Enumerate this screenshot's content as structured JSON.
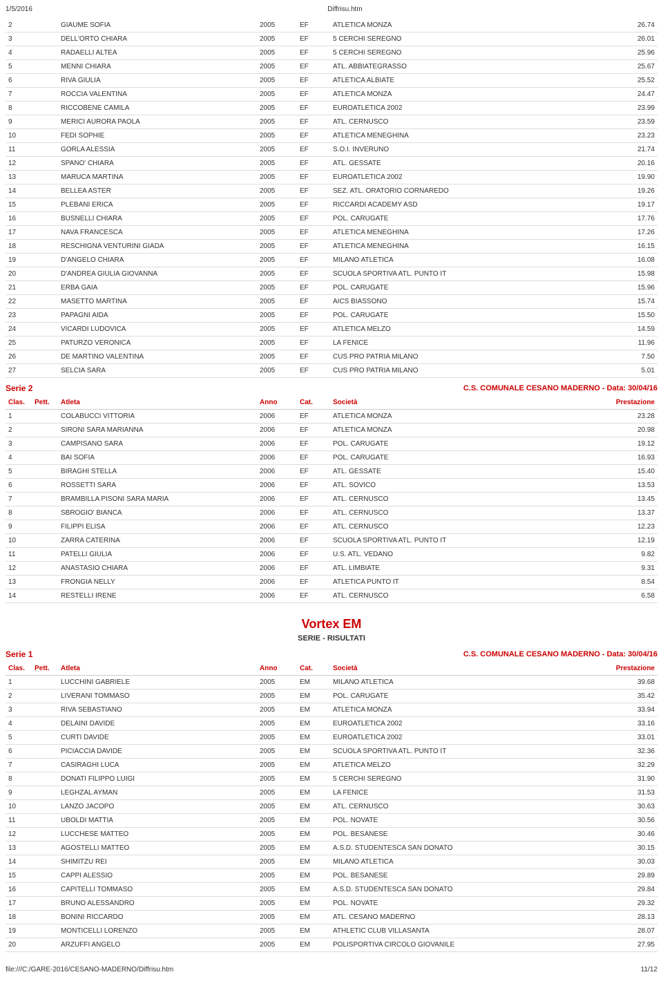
{
  "page_header": {
    "left": "1/5/2016",
    "center": "Diffrisu.htm"
  },
  "page_footer": {
    "left": "file:///C:/GARE-2016/CESANO-MADERNO/Diffrisu.htm",
    "right": "11/12"
  },
  "columns": {
    "clas": "Clas.",
    "pett": "Pett.",
    "atleta": "Atleta",
    "anno": "Anno",
    "cat": "Cat.",
    "soc": "Società",
    "prest": "Prestazione"
  },
  "event_title": "Vortex EM",
  "event_sub": "SERIE - RISULTATI",
  "series": [
    {
      "label": "",
      "meta": "",
      "show_header": false,
      "rows": [
        {
          "c": "2",
          "a": "GIAUME SOFIA",
          "y": "2005",
          "cat": "EF",
          "s": "ATLETICA MONZA",
          "p": "26.74"
        },
        {
          "c": "3",
          "a": "DELL'ORTO CHIARA",
          "y": "2005",
          "cat": "EF",
          "s": "5 CERCHI SEREGNO",
          "p": "26.01"
        },
        {
          "c": "4",
          "a": "RADAELLI ALTEA",
          "y": "2005",
          "cat": "EF",
          "s": "5 CERCHI SEREGNO",
          "p": "25.96"
        },
        {
          "c": "5",
          "a": "MENNI CHIARA",
          "y": "2005",
          "cat": "EF",
          "s": "ATL. ABBIATEGRASSO",
          "p": "25.67"
        },
        {
          "c": "6",
          "a": "RIVA GIULIA",
          "y": "2005",
          "cat": "EF",
          "s": "ATLETICA ALBIATE",
          "p": "25.52"
        },
        {
          "c": "7",
          "a": "ROCCIA VALENTINA",
          "y": "2005",
          "cat": "EF",
          "s": "ATLETICA MONZA",
          "p": "24.47"
        },
        {
          "c": "8",
          "a": "RICCOBENE CAMILA",
          "y": "2005",
          "cat": "EF",
          "s": "EUROATLETICA 2002",
          "p": "23.99"
        },
        {
          "c": "9",
          "a": "MERICI AURORA PAOLA",
          "y": "2005",
          "cat": "EF",
          "s": "ATL. CERNUSCO",
          "p": "23.59"
        },
        {
          "c": "10",
          "a": "FEDI SOPHIE",
          "y": "2005",
          "cat": "EF",
          "s": "ATLETICA MENEGHINA",
          "p": "23.23"
        },
        {
          "c": "11",
          "a": "GORLA ALESSIA",
          "y": "2005",
          "cat": "EF",
          "s": "S.O.I. INVERUNO",
          "p": "21.74"
        },
        {
          "c": "12",
          "a": "SPANO' CHIARA",
          "y": "2005",
          "cat": "EF",
          "s": "ATL. GESSATE",
          "p": "20.16"
        },
        {
          "c": "13",
          "a": "MARUCA MARTINA",
          "y": "2005",
          "cat": "EF",
          "s": "EUROATLETICA 2002",
          "p": "19.90"
        },
        {
          "c": "14",
          "a": "BELLEA ASTER",
          "y": "2005",
          "cat": "EF",
          "s": "SEZ. ATL. ORATORIO CORNAREDO",
          "p": "19.26"
        },
        {
          "c": "15",
          "a": "PLEBANI ERICA",
          "y": "2005",
          "cat": "EF",
          "s": "RICCARDI ACADEMY ASD",
          "p": "19.17"
        },
        {
          "c": "16",
          "a": "BUSNELLI CHIARA",
          "y": "2005",
          "cat": "EF",
          "s": "POL. CARUGATE",
          "p": "17.76"
        },
        {
          "c": "17",
          "a": "NAVA FRANCESCA",
          "y": "2005",
          "cat": "EF",
          "s": "ATLETICA MENEGHINA",
          "p": "17.26"
        },
        {
          "c": "18",
          "a": "RESCHIGNA VENTURINI GIADA",
          "y": "2005",
          "cat": "EF",
          "s": "ATLETICA MENEGHINA",
          "p": "16.15"
        },
        {
          "c": "19",
          "a": "D'ANGELO CHIARA",
          "y": "2005",
          "cat": "EF",
          "s": "MILANO ATLETICA",
          "p": "16.08"
        },
        {
          "c": "20",
          "a": "D'ANDREA GIULIA GIOVANNA",
          "y": "2005",
          "cat": "EF",
          "s": "SCUOLA SPORTIVA ATL. PUNTO IT",
          "p": "15.98"
        },
        {
          "c": "21",
          "a": "ERBA GAIA",
          "y": "2005",
          "cat": "EF",
          "s": "POL. CARUGATE",
          "p": "15.96"
        },
        {
          "c": "22",
          "a": "MASETTO MARTINA",
          "y": "2005",
          "cat": "EF",
          "s": "AICS BIASSONO",
          "p": "15.74"
        },
        {
          "c": "23",
          "a": "PAPAGNI AIDA",
          "y": "2005",
          "cat": "EF",
          "s": "POL. CARUGATE",
          "p": "15.50"
        },
        {
          "c": "24",
          "a": "VICARDI LUDOVICA",
          "y": "2005",
          "cat": "EF",
          "s": "ATLETICA MELZO",
          "p": "14.59"
        },
        {
          "c": "25",
          "a": "PATURZO VERONICA",
          "y": "2005",
          "cat": "EF",
          "s": "LA FENICE",
          "p": "11.96"
        },
        {
          "c": "26",
          "a": "DE MARTINO VALENTINA",
          "y": "2005",
          "cat": "EF",
          "s": "CUS PRO PATRIA MILANO",
          "p": "7.50"
        },
        {
          "c": "27",
          "a": "SELCIA SARA",
          "y": "2005",
          "cat": "EF",
          "s": "CUS PRO PATRIA MILANO",
          "p": "5.01"
        }
      ]
    },
    {
      "label": "Serie 2",
      "meta": "C.S. COMUNALE CESANO MADERNO - Data: 30/04/16",
      "show_header": true,
      "rows": [
        {
          "c": "1",
          "a": "COLABUCCI VITTORIA",
          "y": "2006",
          "cat": "EF",
          "s": "ATLETICA MONZA",
          "p": "23.28"
        },
        {
          "c": "2",
          "a": "SIRONI SARA MARIANNA",
          "y": "2006",
          "cat": "EF",
          "s": "ATLETICA MONZA",
          "p": "20.98"
        },
        {
          "c": "3",
          "a": "CAMPISANO SARA",
          "y": "2006",
          "cat": "EF",
          "s": "POL. CARUGATE",
          "p": "19.12"
        },
        {
          "c": "4",
          "a": "BAI SOFIA",
          "y": "2006",
          "cat": "EF",
          "s": "POL. CARUGATE",
          "p": "16.93"
        },
        {
          "c": "5",
          "a": "BIRAGHI STELLA",
          "y": "2006",
          "cat": "EF",
          "s": "ATL. GESSATE",
          "p": "15.40"
        },
        {
          "c": "6",
          "a": "ROSSETTI SARA",
          "y": "2006",
          "cat": "EF",
          "s": "ATL. SOVICO",
          "p": "13.53"
        },
        {
          "c": "7",
          "a": "BRAMBILLA PISONI SARA MARIA",
          "y": "2006",
          "cat": "EF",
          "s": "ATL. CERNUSCO",
          "p": "13.45"
        },
        {
          "c": "8",
          "a": "SBROGIO' BIANCA",
          "y": "2006",
          "cat": "EF",
          "s": "ATL. CERNUSCO",
          "p": "13.37"
        },
        {
          "c": "9",
          "a": "FILIPPI ELISA",
          "y": "2006",
          "cat": "EF",
          "s": "ATL. CERNUSCO",
          "p": "12.23"
        },
        {
          "c": "10",
          "a": "ZARRA CATERINA",
          "y": "2006",
          "cat": "EF",
          "s": "SCUOLA SPORTIVA ATL. PUNTO IT",
          "p": "12.19"
        },
        {
          "c": "11",
          "a": "PATELLI GIULIA",
          "y": "2006",
          "cat": "EF",
          "s": "U.S. ATL. VEDANO",
          "p": "9.82"
        },
        {
          "c": "12",
          "a": "ANASTASIO CHIARA",
          "y": "2006",
          "cat": "EF",
          "s": "ATL. LIMBIATE",
          "p": "9.31"
        },
        {
          "c": "13",
          "a": "FRONGIA NELLY",
          "y": "2006",
          "cat": "EF",
          "s": "ATLETICA PUNTO IT",
          "p": "8.54"
        },
        {
          "c": "14",
          "a": "RESTELLI IRENE",
          "y": "2006",
          "cat": "EF",
          "s": "ATL. CERNUSCO",
          "p": "6.58"
        }
      ]
    },
    {
      "label": "Serie 1",
      "meta": "C.S. COMUNALE CESANO MADERNO - Data: 30/04/16",
      "show_header": true,
      "event_before": true,
      "rows": [
        {
          "c": "1",
          "a": "LUCCHINI GABRIELE",
          "y": "2005",
          "cat": "EM",
          "s": "MILANO ATLETICA",
          "p": "39.68"
        },
        {
          "c": "2",
          "a": "LIVERANI TOMMASO",
          "y": "2005",
          "cat": "EM",
          "s": "POL. CARUGATE",
          "p": "35.42"
        },
        {
          "c": "3",
          "a": "RIVA SEBASTIANO",
          "y": "2005",
          "cat": "EM",
          "s": "ATLETICA MONZA",
          "p": "33.94"
        },
        {
          "c": "4",
          "a": "DELAINI DAVIDE",
          "y": "2005",
          "cat": "EM",
          "s": "EUROATLETICA 2002",
          "p": "33.16"
        },
        {
          "c": "5",
          "a": "CURTI DAVIDE",
          "y": "2005",
          "cat": "EM",
          "s": "EUROATLETICA 2002",
          "p": "33.01"
        },
        {
          "c": "6",
          "a": "PICIACCIA DAVIDE",
          "y": "2005",
          "cat": "EM",
          "s": "SCUOLA SPORTIVA ATL. PUNTO IT",
          "p": "32.36"
        },
        {
          "c": "7",
          "a": "CASIRAGHI LUCA",
          "y": "2005",
          "cat": "EM",
          "s": "ATLETICA MELZO",
          "p": "32.29"
        },
        {
          "c": "8",
          "a": "DONATI FILIPPO LUIGI",
          "y": "2005",
          "cat": "EM",
          "s": "5 CERCHI SEREGNO",
          "p": "31.90"
        },
        {
          "c": "9",
          "a": "LEGHZAL AYMAN",
          "y": "2005",
          "cat": "EM",
          "s": "LA FENICE",
          "p": "31.53"
        },
        {
          "c": "10",
          "a": "LANZO JACOPO",
          "y": "2005",
          "cat": "EM",
          "s": "ATL. CERNUSCO",
          "p": "30.63"
        },
        {
          "c": "11",
          "a": "UBOLDI MATTIA",
          "y": "2005",
          "cat": "EM",
          "s": "POL. NOVATE",
          "p": "30.56"
        },
        {
          "c": "12",
          "a": "LUCCHESE MATTEO",
          "y": "2005",
          "cat": "EM",
          "s": "POL. BESANESE",
          "p": "30.46"
        },
        {
          "c": "13",
          "a": "AGOSTELLI MATTEO",
          "y": "2005",
          "cat": "EM",
          "s": "A.S.D. STUDENTESCA SAN DONATO",
          "p": "30.15"
        },
        {
          "c": "14",
          "a": "SHIMITZU REI",
          "y": "2005",
          "cat": "EM",
          "s": "MILANO ATLETICA",
          "p": "30.03"
        },
        {
          "c": "15",
          "a": "CAPPI ALESSIO",
          "y": "2005",
          "cat": "EM",
          "s": "POL. BESANESE",
          "p": "29.89"
        },
        {
          "c": "16",
          "a": "CAPITELLI TOMMASO",
          "y": "2005",
          "cat": "EM",
          "s": "A.S.D. STUDENTESCA SAN DONATO",
          "p": "29.84"
        },
        {
          "c": "17",
          "a": "BRUNO ALESSANDRO",
          "y": "2005",
          "cat": "EM",
          "s": "POL. NOVATE",
          "p": "29.32"
        },
        {
          "c": "18",
          "a": "BONINI RICCARDO",
          "y": "2005",
          "cat": "EM",
          "s": "ATL. CESANO MADERNO",
          "p": "28.13"
        },
        {
          "c": "19",
          "a": "MONTICELLI LORENZO",
          "y": "2005",
          "cat": "EM",
          "s": "ATHLETIC CLUB VILLASANTA",
          "p": "28.07"
        },
        {
          "c": "20",
          "a": "ARZUFFI ANGELO",
          "y": "2005",
          "cat": "EM",
          "s": "POLISPORTIVA CIRCOLO GIOVANILE",
          "p": "27.95"
        }
      ]
    }
  ]
}
